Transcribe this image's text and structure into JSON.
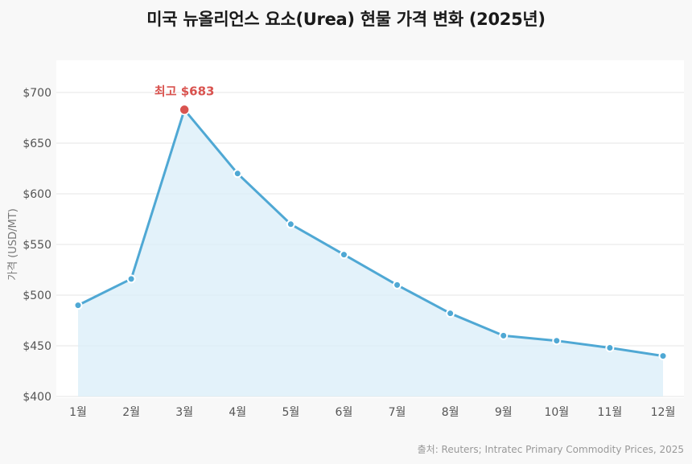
{
  "title": "미국 뉴올리언스 요소(Urea) 현물 가격 변화 (2025년)",
  "source": "출처: Reuters; Intratec Primary Commodity Prices, 2025",
  "colors": {
    "line": "#4fa8d4",
    "area": "#d9edf8",
    "peak": "#d9534f",
    "grid": "#e6e6e6",
    "background": "#f8f8f8",
    "plot_background": "#ffffff"
  },
  "chart_data": {
    "type": "line",
    "title": "미국 뉴올리언스 요소(Urea) 현물 가격 변화 (2025년)",
    "categories": [
      "1월",
      "2월",
      "3월",
      "4월",
      "5월",
      "6월",
      "7월",
      "8월",
      "9월",
      "10월",
      "11월",
      "12월"
    ],
    "series": [
      {
        "values": [
          490,
          516,
          683,
          620,
          570,
          540,
          510,
          482,
          460,
          455,
          448,
          440
        ]
      }
    ],
    "ylabel": "가격 (USD/MT)",
    "xlabel": "",
    "ylim": [
      400,
      700
    ],
    "yticks": [
      400,
      450,
      500,
      550,
      600,
      650,
      700
    ],
    "ytick_labels": [
      "$400",
      "$450",
      "$500",
      "$550",
      "$600",
      "$650",
      "$700"
    ],
    "area_fill": true,
    "grid": "horizontal",
    "annotation": {
      "label": "최고 $683",
      "category": "3월",
      "value": 683
    }
  }
}
